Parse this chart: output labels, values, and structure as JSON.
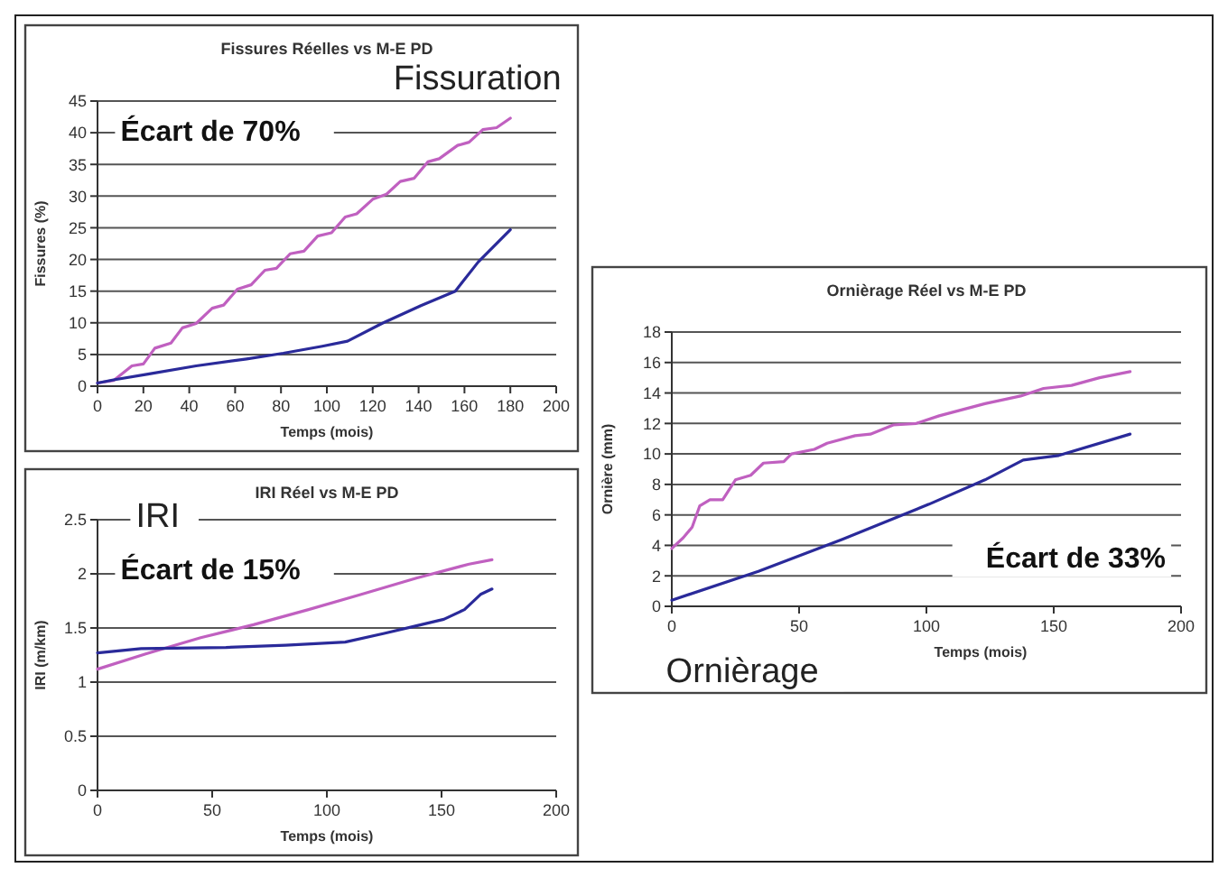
{
  "chart_data": [
    {
      "type": "line",
      "title": "Fissures Réelles vs M-E PD",
      "xlabel": "Temps (mois)",
      "ylabel": "Fissures (%)",
      "annotations": [
        "Fissuration",
        "Écart de 70%"
      ],
      "xlim": [
        0,
        200
      ],
      "xticks": [
        0,
        20,
        40,
        60,
        80,
        100,
        120,
        140,
        160,
        180,
        200
      ],
      "ylim": [
        0,
        45
      ],
      "yticks": [
        0,
        5,
        10,
        15,
        20,
        25,
        30,
        35,
        40,
        45
      ],
      "grid": "y",
      "line_style": "solid",
      "series": [
        {
          "color": "#c060c0",
          "x": [
            0,
            7,
            15,
            20,
            25,
            32,
            37,
            43,
            50,
            55,
            61,
            67,
            73,
            78,
            84,
            90,
            96,
            102,
            108,
            113,
            120,
            126,
            132,
            138,
            144,
            149,
            157,
            162,
            168,
            174,
            180
          ],
          "values": [
            0.5,
            0.9,
            3.2,
            3.5,
            6,
            6.8,
            9.2,
            9.9,
            12.3,
            12.8,
            15.3,
            16,
            18.3,
            18.6,
            20.9,
            21.3,
            23.7,
            24.2,
            26.7,
            27.2,
            29.5,
            30.3,
            32.3,
            32.8,
            35.4,
            35.9,
            38,
            38.5,
            40.5,
            40.8,
            42.3
          ]
        },
        {
          "color": "#2a2a9a",
          "x": [
            0,
            7,
            22,
            43,
            65,
            81,
            98,
            109,
            124,
            141,
            156,
            166,
            180
          ],
          "values": [
            0.5,
            1,
            1.9,
            3.2,
            4.3,
            5.2,
            6.3,
            7.1,
            9.9,
            12.7,
            15,
            19.6,
            24.7
          ]
        }
      ]
    },
    {
      "type": "line",
      "title": "Ornièrage Réel vs M-E PD",
      "xlabel": "Temps (mois)",
      "ylabel": "Ornière (mm)",
      "annotations": [
        "Ornièrage",
        "Écart de 33%"
      ],
      "xlim": [
        0,
        200
      ],
      "xticks": [
        0,
        50,
        100,
        150,
        200
      ],
      "ylim": [
        0,
        18
      ],
      "yticks": [
        0,
        2,
        4,
        6,
        8,
        10,
        12,
        14,
        16,
        18
      ],
      "grid": "y",
      "line_style": "solid",
      "series": [
        {
          "color": "#c060c0",
          "x": [
            0,
            4.5,
            8,
            11,
            15,
            20,
            25,
            31,
            36,
            44,
            47,
            56,
            61,
            72,
            78,
            87,
            96,
            105,
            114,
            123,
            137,
            146,
            157,
            168,
            180
          ],
          "values": [
            3.8,
            4.5,
            5.2,
            6.6,
            7,
            7,
            8.3,
            8.6,
            9.4,
            9.5,
            10,
            10.3,
            10.7,
            11.2,
            11.3,
            11.9,
            12,
            12.5,
            12.9,
            13.3,
            13.8,
            14.3,
            14.5,
            15,
            15.4
          ]
        },
        {
          "color": "#2a2a9a",
          "x": [
            0,
            34,
            67,
            101,
            123,
            138,
            152,
            180
          ],
          "values": [
            0.4,
            2.3,
            4.4,
            6.7,
            8.3,
            9.6,
            9.9,
            11.3
          ]
        }
      ]
    },
    {
      "type": "line",
      "title": "IRI Réel vs M-E PD",
      "xlabel": "Temps (mois)",
      "ylabel": "IRI (m/km)",
      "annotations": [
        "IRI",
        "Écart de 15%"
      ],
      "xlim": [
        0,
        200
      ],
      "xticks": [
        0,
        50,
        100,
        150,
        200
      ],
      "ylim": [
        0,
        2.5
      ],
      "yticks": [
        0,
        0.5,
        1,
        1.5,
        2,
        2.5
      ],
      "grid": "y",
      "line_style": "solid",
      "series": [
        {
          "color": "#c060c0",
          "x": [
            0,
            21,
            45,
            68,
            92,
            115,
            139,
            162,
            172
          ],
          "values": [
            1.12,
            1.26,
            1.41,
            1.53,
            1.67,
            1.81,
            1.96,
            2.09,
            2.13
          ]
        },
        {
          "color": "#2a2a9a",
          "x": [
            0,
            19,
            56,
            82,
            108,
            125,
            139,
            151,
            160,
            167,
            172
          ],
          "values": [
            1.27,
            1.31,
            1.32,
            1.34,
            1.37,
            1.45,
            1.52,
            1.58,
            1.67,
            1.81,
            1.86
          ]
        }
      ]
    }
  ]
}
